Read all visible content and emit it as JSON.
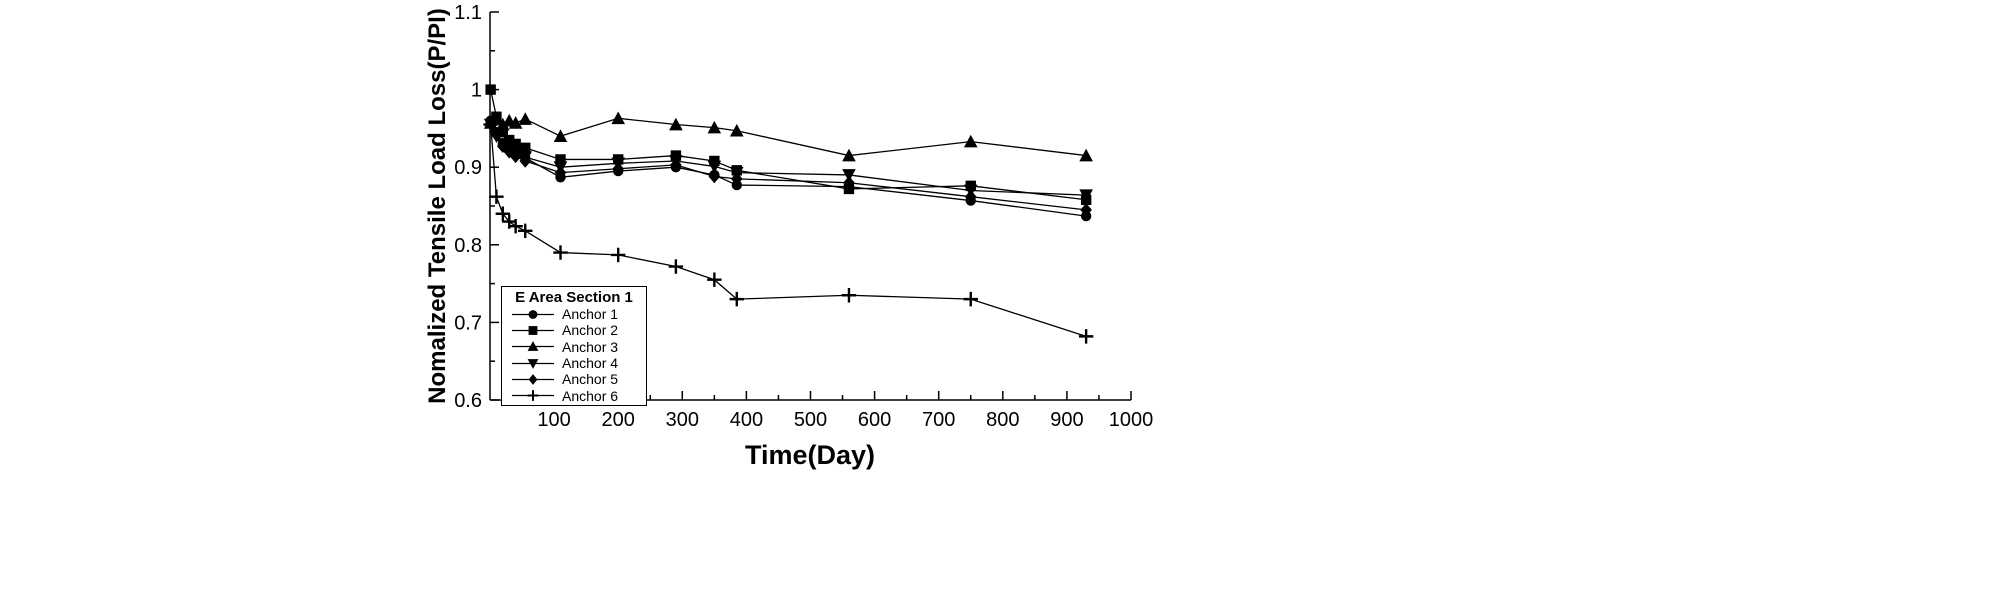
{
  "figure": {
    "background": "#ffffff"
  },
  "chart_data": {
    "type": "line",
    "title": "",
    "xlabel": "Time(Day)",
    "ylabel": "Nomalized Tensile Load Loss(P/PI)",
    "xlim": [
      0,
      1000
    ],
    "ylim": [
      0.6,
      1.1
    ],
    "x_major_ticks": [
      100,
      200,
      300,
      400,
      500,
      600,
      700,
      800,
      900,
      1000
    ],
    "x_minor_step": 50,
    "y_major_ticks": [
      0.6,
      0.7,
      0.8,
      0.9,
      1.0,
      1.1
    ],
    "y_tick_labels": [
      "0.6",
      "0.7",
      "0.8",
      "0.9",
      "1",
      "1.1"
    ],
    "y_minor_step": 0.05,
    "grid": false,
    "color": "#000000",
    "legend_title": "E Area Section 1",
    "legend_position": "lower-left",
    "x": [
      1,
      10,
      20,
      30,
      40,
      55,
      110,
      200,
      290,
      350,
      385,
      560,
      750,
      930
    ],
    "series": [
      {
        "name": "Anchor 1",
        "marker": "circle",
        "values": [
          0.96,
          0.945,
          0.93,
          0.922,
          0.917,
          0.912,
          0.887,
          0.895,
          0.9,
          0.89,
          0.877,
          0.875,
          0.857,
          0.837
        ]
      },
      {
        "name": "Anchor 2",
        "marker": "square",
        "values": [
          1.0,
          0.965,
          0.945,
          0.935,
          0.93,
          0.925,
          0.91,
          0.91,
          0.915,
          0.908,
          0.896,
          0.872,
          0.876,
          0.858
        ]
      },
      {
        "name": "Anchor 3",
        "marker": "triangle-up",
        "values": [
          0.957,
          0.962,
          0.955,
          0.96,
          0.957,
          0.962,
          0.94,
          0.963,
          0.955,
          0.951,
          0.947,
          0.915,
          0.933,
          0.915
        ]
      },
      {
        "name": "Anchor 4",
        "marker": "triangle-down",
        "values": [
          0.955,
          0.94,
          0.93,
          0.924,
          0.918,
          0.913,
          0.9,
          0.905,
          0.908,
          0.901,
          0.893,
          0.89,
          0.87,
          0.864
        ]
      },
      {
        "name": "Anchor 5",
        "marker": "diamond",
        "values": [
          0.956,
          0.942,
          0.927,
          0.92,
          0.914,
          0.908,
          0.893,
          0.898,
          0.903,
          0.888,
          0.885,
          0.88,
          0.862,
          0.845
        ]
      },
      {
        "name": "Anchor 6",
        "marker": "plus",
        "values": [
          0.955,
          0.862,
          0.84,
          0.83,
          0.824,
          0.818,
          0.79,
          0.787,
          0.772,
          0.755,
          0.73,
          0.735,
          0.73,
          0.682
        ]
      }
    ]
  }
}
